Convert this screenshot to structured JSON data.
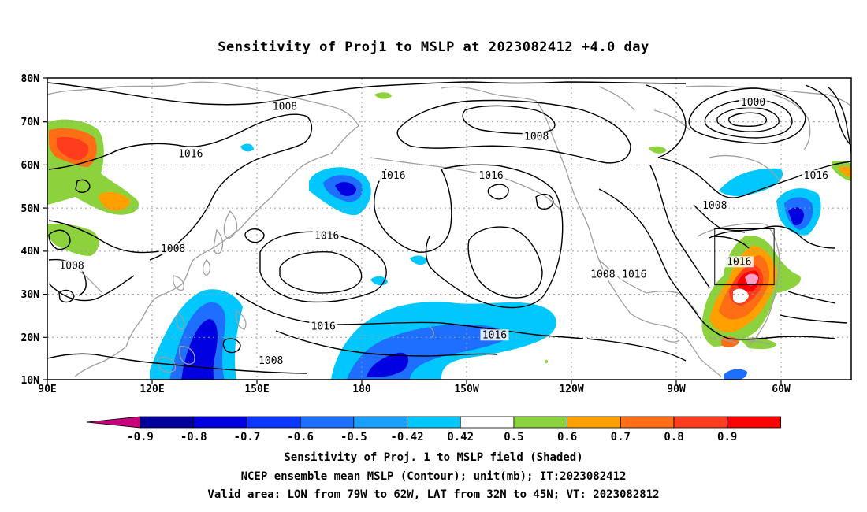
{
  "title": "Sensitivity of Proj1 to MSLP at 2023082412 +4.0 day",
  "map": {
    "lat_labels": [
      "80N",
      "70N",
      "60N",
      "50N",
      "40N",
      "30N",
      "20N",
      "10N"
    ],
    "lon_labels": [
      "90E",
      "120E",
      "150E",
      "180",
      "150W",
      "120W",
      "90W",
      "60W"
    ],
    "contour_labels": [
      {
        "text": "1008",
        "lon": 158,
        "lat": 73
      },
      {
        "text": "1008",
        "lon": -130,
        "lat": 66
      },
      {
        "text": "1000",
        "lon": -68,
        "lat": 74
      },
      {
        "text": "1016",
        "lon": 131,
        "lat": 62
      },
      {
        "text": "1016",
        "lon": -171,
        "lat": 57
      },
      {
        "text": "1016",
        "lon": -143,
        "lat": 57
      },
      {
        "text": "1016",
        "lon": -50,
        "lat": 57
      },
      {
        "text": "1008",
        "lon": -79,
        "lat": 50
      },
      {
        "text": "1016",
        "lon": 170,
        "lat": 43
      },
      {
        "text": "1008",
        "lon": 126,
        "lat": 40
      },
      {
        "text": "1008",
        "lon": 97,
        "lat": 36
      },
      {
        "text": "1016",
        "lon": -72,
        "lat": 37
      },
      {
        "text": "1008",
        "lon": -111,
        "lat": 34
      },
      {
        "text": "1016",
        "lon": -102,
        "lat": 34
      },
      {
        "text": "1016",
        "lon": 169,
        "lat": 22
      },
      {
        "text": "1016",
        "lon": -142,
        "lat": 20
      },
      {
        "text": "1008",
        "lon": 154,
        "lat": 14
      }
    ]
  },
  "colorbar": {
    "labels": [
      "-0.9",
      "-0.8",
      "-0.7",
      "-0.6",
      "-0.5",
      "-0.42",
      "0.42",
      "0.5",
      "0.6",
      "0.7",
      "0.8",
      "0.9"
    ],
    "colors": [
      "#00009c",
      "#0000e0",
      "#0a36ff",
      "#1e6eff",
      "#19a0ff",
      "#00c8ff",
      "#ffffff",
      "#8cd23c",
      "#ffa000",
      "#ff6e14",
      "#ff3c1e",
      "#ff0000"
    ],
    "low_color": "#c8007a",
    "high_color": "#ff9ec8"
  },
  "captions": [
    "Sensitivity of Proj. 1 to MSLP field (Shaded)",
    "NCEP ensemble mean MSLP (Contour); unit(mb); IT:2023082412",
    "Valid area: LON from 79W to 62W, LAT from 32N to 45N; VT: 2023082812"
  ],
  "valid_area": {
    "lon_from": -79,
    "lon_to": -62,
    "lat_from": 32,
    "lat_to": 45
  }
}
